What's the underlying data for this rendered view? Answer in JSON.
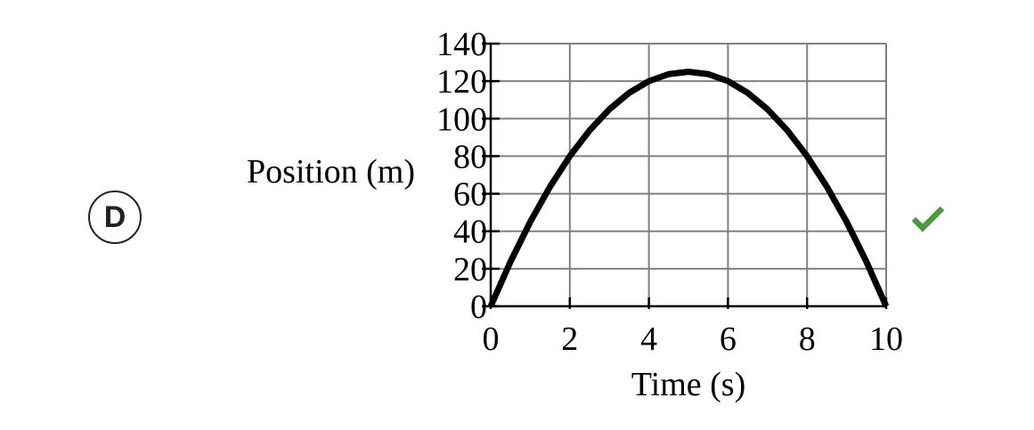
{
  "choice": {
    "letter": "D"
  },
  "status": {
    "correct_icon": "check-icon",
    "correct_color": "#4a9a3e"
  },
  "chart_data": {
    "type": "line",
    "xlabel": "Time (s)",
    "ylabel": "Position (m)",
    "xlim": [
      0,
      10
    ],
    "ylim": [
      0,
      140
    ],
    "x_ticks": [
      0,
      2,
      4,
      6,
      8,
      10
    ],
    "y_ticks": [
      0,
      20,
      40,
      60,
      80,
      100,
      120,
      140
    ],
    "x_grid": [
      0,
      2,
      4,
      6,
      8,
      10
    ],
    "y_grid": [
      0,
      20,
      40,
      60,
      80,
      100,
      120,
      140
    ],
    "grid": true,
    "series": [
      {
        "x": [
          0,
          0.5,
          1,
          1.5,
          2,
          2.5,
          3,
          3.5,
          4,
          4.5,
          5,
          5.5,
          6,
          6.5,
          7,
          7.5,
          8,
          8.5,
          9,
          9.5,
          10
        ],
        "y": [
          0,
          23.75,
          45,
          63.75,
          80,
          93.75,
          105,
          113.75,
          120,
          123.75,
          125,
          123.75,
          120,
          113.75,
          105,
          93.75,
          80,
          63.75,
          45,
          23.75,
          0
        ]
      }
    ],
    "colors": {
      "line": "#000000",
      "grid": "#808080",
      "axis": "#000000"
    }
  }
}
